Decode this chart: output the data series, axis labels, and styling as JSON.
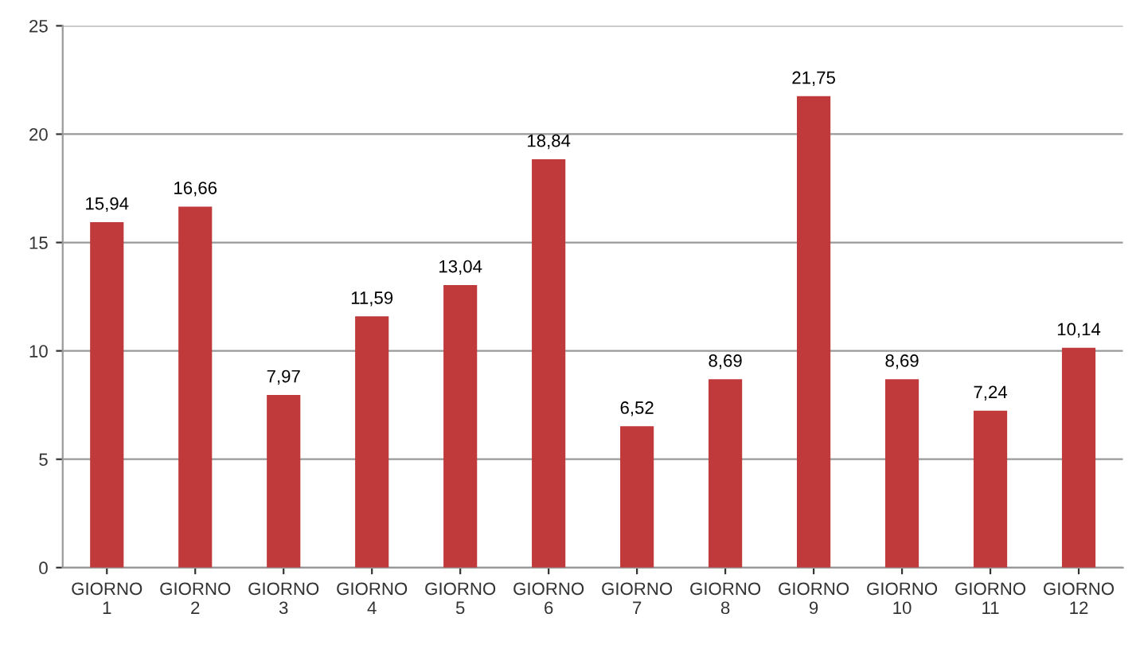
{
  "chart_data": {
    "type": "bar",
    "categories": [
      "GIORNO\n1",
      "GIORNO\n2",
      "GIORNO\n3",
      "GIORNO\n4",
      "GIORNO\n5",
      "GIORNO\n6",
      "GIORNO\n7",
      "GIORNO\n8",
      "GIORNO\n9",
      "GIORNO\n10",
      "GIORNO\n11",
      "GIORNO\n12"
    ],
    "values": [
      15.94,
      16.66,
      7.97,
      11.59,
      13.04,
      18.84,
      6.52,
      8.69,
      21.75,
      8.69,
      7.24,
      10.14
    ],
    "value_labels": [
      "15,94",
      "16,66",
      "7,97",
      "11,59",
      "13,04",
      "18,84",
      "6,52",
      "8,69",
      "21,75",
      "8,69",
      "7,24",
      "10,14"
    ],
    "color": "#c0393b",
    "ylim": [
      0,
      25
    ],
    "yticks": [
      0,
      5,
      10,
      15,
      20,
      25
    ],
    "grid": "y"
  }
}
